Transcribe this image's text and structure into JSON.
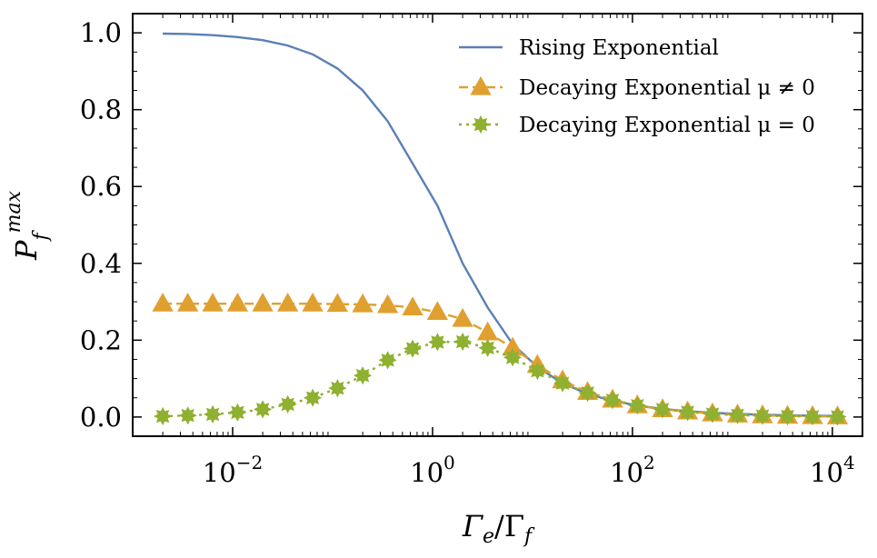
{
  "chart_data": {
    "type": "line",
    "x_scale": "log",
    "xlim": [
      0.001,
      20000
    ],
    "ylim": [
      -0.05,
      1.05
    ],
    "xlabel": "Γe/Γf",
    "ylabel": "Pf^max",
    "xticks": [
      0.01,
      1,
      100,
      10000
    ],
    "xtick_labels": [
      {
        "base": "10",
        "exp": "−2"
      },
      {
        "base": "10",
        "exp": "0"
      },
      {
        "base": "10",
        "exp": "2"
      },
      {
        "base": "10",
        "exp": "4"
      }
    ],
    "yticks": [
      0.0,
      0.2,
      0.4,
      0.6,
      0.8,
      1.0
    ],
    "ytick_labels": [
      "0.0",
      "0.2",
      "0.4",
      "0.6",
      "0.8",
      "1.0"
    ],
    "grid": false,
    "legend_position": "top-right",
    "x": [
      0.002,
      0.00356,
      0.00632,
      0.0112,
      0.02,
      0.0356,
      0.0632,
      0.112,
      0.2,
      0.356,
      0.632,
      1.12,
      2.0,
      3.56,
      6.32,
      11.2,
      20.0,
      35.6,
      63.2,
      112,
      200,
      356,
      632,
      1125,
      2000,
      3557,
      6325,
      11247
    ],
    "series": [
      {
        "name": "Rising Exponential",
        "color": "#5b7fb5",
        "linestyle": "solid",
        "marker": "none",
        "values": [
          0.998,
          0.997,
          0.994,
          0.989,
          0.981,
          0.967,
          0.944,
          0.907,
          0.85,
          0.77,
          0.66,
          0.55,
          0.4,
          0.285,
          0.19,
          0.13,
          0.088,
          0.06,
          0.042,
          0.03,
          0.021,
          0.015,
          0.011,
          0.008,
          0.006,
          0.0045,
          0.0035,
          0.003
        ]
      },
      {
        "name": "Decaying Exponential μ ≠ 0",
        "color": "#e0a030",
        "linestyle": "dashed",
        "marker": "triangle",
        "values": [
          0.295,
          0.295,
          0.295,
          0.295,
          0.295,
          0.295,
          0.295,
          0.294,
          0.293,
          0.291,
          0.285,
          0.273,
          0.255,
          0.22,
          0.18,
          0.135,
          0.095,
          0.065,
          0.045,
          0.03,
          0.02,
          0.014,
          0.009,
          0.006,
          0.004,
          0.003,
          0.002,
          0.0015
        ]
      },
      {
        "name": "Decaying Exponential μ = 0",
        "color": "#8fb030",
        "linestyle": "dotted",
        "marker": "star",
        "values": [
          0.002,
          0.004,
          0.007,
          0.012,
          0.02,
          0.033,
          0.05,
          0.075,
          0.108,
          0.148,
          0.178,
          0.195,
          0.196,
          0.18,
          0.155,
          0.12,
          0.088,
          0.063,
          0.044,
          0.03,
          0.02,
          0.013,
          0.008,
          0.005,
          0.003,
          0.002,
          0.0015,
          0.001
        ]
      }
    ]
  }
}
